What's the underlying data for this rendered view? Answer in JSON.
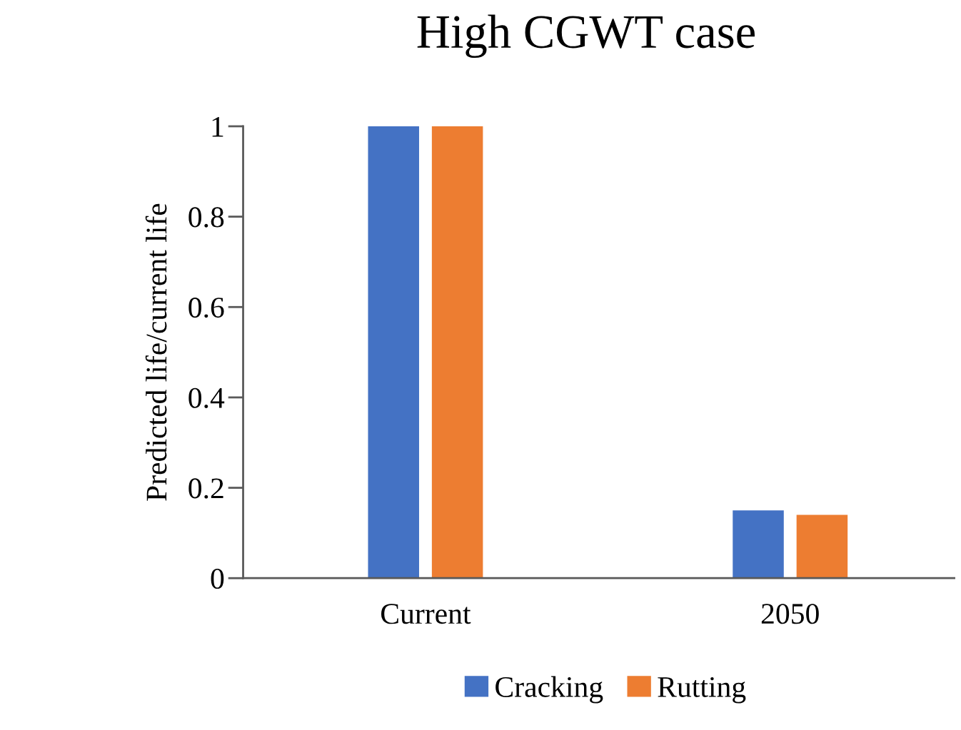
{
  "chart_data": {
    "type": "bar",
    "title": "High CGWT case",
    "ylabel": "Predicted life/current life",
    "categories": [
      "Current",
      "2050"
    ],
    "series": [
      {
        "name": "Cracking",
        "color": "#4472c4",
        "values": [
          1,
          0.15
        ]
      },
      {
        "name": "Rutting",
        "color": "#ed7d31",
        "values": [
          1,
          0.14
        ]
      }
    ],
    "ylim": [
      0,
      1
    ],
    "yticks": [
      0,
      0.2,
      0.4,
      0.6,
      0.8,
      1
    ],
    "grid": false,
    "legend": "bottom"
  }
}
